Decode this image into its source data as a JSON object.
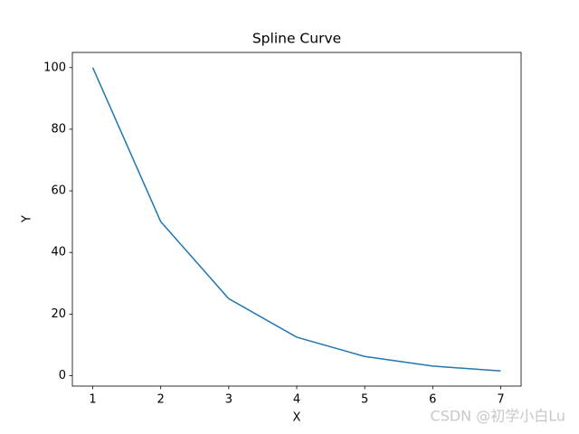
{
  "chart_data": {
    "type": "line",
    "title": "Spline Curve",
    "x_label": "X",
    "y_label": "Y",
    "x": [
      1,
      2,
      3,
      4,
      5,
      6,
      7
    ],
    "series": [
      {
        "name": "Y",
        "color": "#1f77b4",
        "values": [
          100,
          50,
          25,
          12.5,
          6.25,
          3.125,
          1.5625
        ]
      }
    ],
    "xlim": [
      0.7,
      7.3
    ],
    "xticks": [
      1,
      2,
      3,
      4,
      5,
      6,
      7
    ],
    "ylim": [
      -3.36,
      104.92
    ],
    "yticks": [
      0,
      20,
      40,
      60,
      80,
      100
    ],
    "grid": false,
    "legend": false,
    "annotations": [
      "CSDN @初学小白Lu"
    ]
  }
}
